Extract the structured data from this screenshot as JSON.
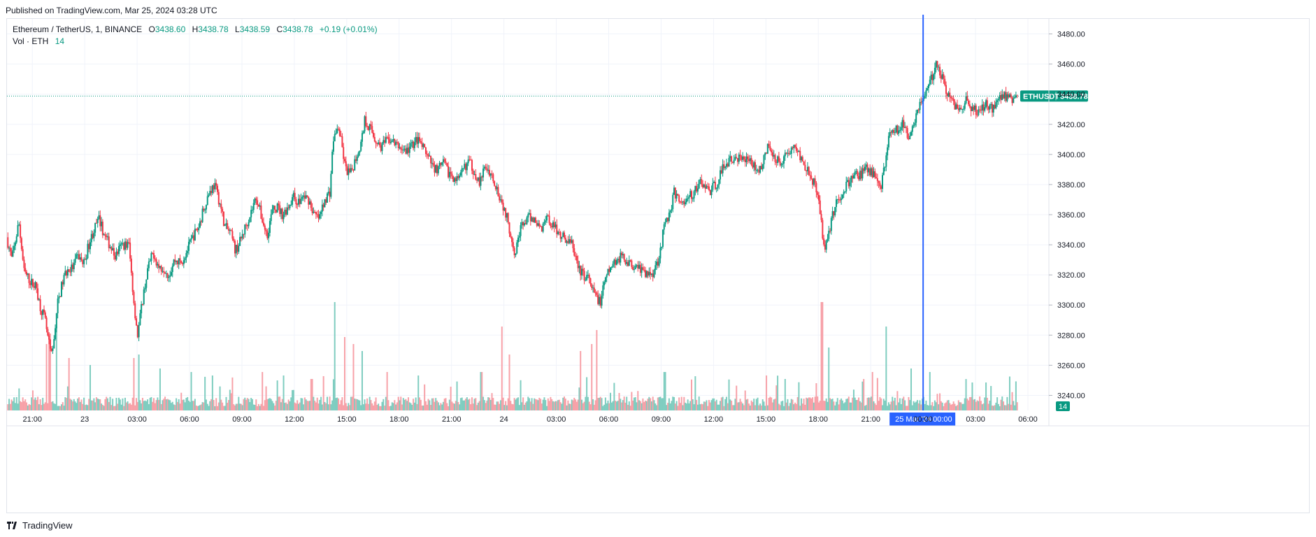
{
  "header": {
    "published": "Published on TradingView.com, Mar 25, 2024 03:28 UTC"
  },
  "legend": {
    "symbol": "Ethereum / TetherUS, 1, BINANCE",
    "o_label": "O",
    "o_value": "3438.60",
    "h_label": "H",
    "h_value": "3438.78",
    "l_label": "L",
    "l_value": "3438.59",
    "c_label": "C",
    "c_value": "3438.78",
    "change": "+0.19 (+0.01%)",
    "vol_label": "Vol · ETH",
    "vol_value": "14"
  },
  "footer": {
    "brand": "TradingView"
  },
  "colors": {
    "up": "#089981",
    "down": "#f23645",
    "up_vol": "#7fcdc0",
    "down_vol": "#f7a1a8",
    "crosshair": "#2962ff",
    "grid": "#f0f3fa"
  },
  "chart_data": {
    "type": "candlestick",
    "symbol": "ETHUSDT",
    "interval": "1",
    "y_ticks": [
      "3240.00",
      "3260.00",
      "3280.00",
      "3300.00",
      "3320.00",
      "3340.00",
      "3360.00",
      "3380.00",
      "3400.00",
      "3420.00",
      "3440.00",
      "3460.00",
      "3480.00"
    ],
    "ylim": [
      3230,
      3490
    ],
    "x_ticks": [
      "21:00",
      "23",
      "03:00",
      "06:00",
      "09:00",
      "12:00",
      "15:00",
      "18:00",
      "21:00",
      "24",
      "03:00",
      "06:00",
      "09:00",
      "12:00",
      "15:00",
      "18:00",
      "21:00",
      "00:00",
      "03:00",
      "06:00"
    ],
    "x_tick_hours": [
      21,
      24,
      27,
      30,
      33,
      36,
      39,
      42,
      45,
      48,
      51,
      54,
      57,
      60,
      63,
      66,
      69,
      72,
      75,
      78
    ],
    "xlim_hours": [
      19.55,
      79.2
    ],
    "last_price": "3438.78",
    "last_price_label": "ETHUSDT",
    "last_volume": "14",
    "crosshair_date_label": "25 Mar '24",
    "crosshair_time_label": "00:00",
    "crosshair_hour": 72.0,
    "price_path": [
      [
        19.6,
        3345
      ],
      [
        19.9,
        3330
      ],
      [
        20.3,
        3355
      ],
      [
        20.6,
        3322
      ],
      [
        21.0,
        3315
      ],
      [
        21.3,
        3312
      ],
      [
        21.5,
        3300
      ],
      [
        21.8,
        3290
      ],
      [
        22.0,
        3275
      ],
      [
        22.2,
        3265
      ],
      [
        22.5,
        3300
      ],
      [
        22.8,
        3315
      ],
      [
        23.0,
        3322
      ],
      [
        23.4,
        3325
      ],
      [
        23.7,
        3333
      ],
      [
        24.0,
        3327
      ],
      [
        24.3,
        3340
      ],
      [
        24.6,
        3350
      ],
      [
        24.9,
        3357
      ],
      [
        25.2,
        3346
      ],
      [
        25.5,
        3340
      ],
      [
        25.8,
        3332
      ],
      [
        26.2,
        3340
      ],
      [
        26.6,
        3340
      ],
      [
        26.9,
        3300
      ],
      [
        27.1,
        3280
      ],
      [
        27.4,
        3305
      ],
      [
        27.7,
        3325
      ],
      [
        28.0,
        3335
      ],
      [
        28.3,
        3325
      ],
      [
        28.6,
        3325
      ],
      [
        28.9,
        3320
      ],
      [
        29.2,
        3330
      ],
      [
        29.6,
        3328
      ],
      [
        30.0,
        3338
      ],
      [
        30.3,
        3346
      ],
      [
        30.6,
        3352
      ],
      [
        30.9,
        3365
      ],
      [
        31.2,
        3375
      ],
      [
        31.5,
        3380
      ],
      [
        31.8,
        3368
      ],
      [
        32.1,
        3352
      ],
      [
        32.4,
        3348
      ],
      [
        32.7,
        3336
      ],
      [
        33.0,
        3343
      ],
      [
        33.3,
        3353
      ],
      [
        33.6,
        3362
      ],
      [
        33.9,
        3372
      ],
      [
        34.2,
        3358
      ],
      [
        34.5,
        3346
      ],
      [
        34.8,
        3362
      ],
      [
        35.1,
        3365
      ],
      [
        35.4,
        3360
      ],
      [
        35.7,
        3365
      ],
      [
        36.0,
        3372
      ],
      [
        36.3,
        3368
      ],
      [
        36.6,
        3372
      ],
      [
        36.9,
        3370
      ],
      [
        37.2,
        3360
      ],
      [
        37.5,
        3357
      ],
      [
        37.8,
        3370
      ],
      [
        38.1,
        3375
      ],
      [
        38.3,
        3410
      ],
      [
        38.6,
        3418
      ],
      [
        38.8,
        3405
      ],
      [
        39.0,
        3390
      ],
      [
        39.3,
        3387
      ],
      [
        39.6,
        3398
      ],
      [
        39.9,
        3408
      ],
      [
        40.1,
        3423
      ],
      [
        40.4,
        3418
      ],
      [
        40.7,
        3410
      ],
      [
        41.0,
        3405
      ],
      [
        41.3,
        3408
      ],
      [
        41.6,
        3410
      ],
      [
        41.9,
        3406
      ],
      [
        42.2,
        3404
      ],
      [
        42.5,
        3402
      ],
      [
        42.8,
        3406
      ],
      [
        43.1,
        3410
      ],
      [
        43.4,
        3405
      ],
      [
        43.7,
        3398
      ],
      [
        44.0,
        3392
      ],
      [
        44.3,
        3390
      ],
      [
        44.6,
        3394
      ],
      [
        44.9,
        3388
      ],
      [
        45.2,
        3385
      ],
      [
        45.5,
        3382
      ],
      [
        45.8,
        3392
      ],
      [
        46.1,
        3395
      ],
      [
        46.4,
        3388
      ],
      [
        46.7,
        3381
      ],
      [
        47.0,
        3392
      ],
      [
        47.3,
        3388
      ],
      [
        47.6,
        3380
      ],
      [
        47.9,
        3370
      ],
      [
        48.2,
        3360
      ],
      [
        48.4,
        3350
      ],
      [
        48.7,
        3335
      ],
      [
        49.0,
        3350
      ],
      [
        49.3,
        3356
      ],
      [
        49.6,
        3358
      ],
      [
        49.9,
        3356
      ],
      [
        50.2,
        3350
      ],
      [
        50.5,
        3360
      ],
      [
        50.8,
        3354
      ],
      [
        51.1,
        3350
      ],
      [
        51.4,
        3346
      ],
      [
        51.7,
        3343
      ],
      [
        52.0,
        3340
      ],
      [
        52.3,
        3325
      ],
      [
        52.6,
        3320
      ],
      [
        52.9,
        3318
      ],
      [
        53.1,
        3310
      ],
      [
        53.4,
        3305
      ],
      [
        53.6,
        3302
      ],
      [
        53.9,
        3318
      ],
      [
        54.2,
        3325
      ],
      [
        54.5,
        3330
      ],
      [
        54.8,
        3332
      ],
      [
        55.1,
        3330
      ],
      [
        55.4,
        3326
      ],
      [
        55.7,
        3328
      ],
      [
        56.0,
        3322
      ],
      [
        56.3,
        3320
      ],
      [
        56.6,
        3322
      ],
      [
        56.9,
        3330
      ],
      [
        57.1,
        3342
      ],
      [
        57.3,
        3355
      ],
      [
        57.6,
        3362
      ],
      [
        57.8,
        3375
      ],
      [
        58.1,
        3370
      ],
      [
        58.4,
        3368
      ],
      [
        58.7,
        3372
      ],
      [
        59.0,
        3375
      ],
      [
        59.3,
        3382
      ],
      [
        59.6,
        3378
      ],
      [
        59.9,
        3376
      ],
      [
        60.2,
        3380
      ],
      [
        60.5,
        3388
      ],
      [
        60.8,
        3395
      ],
      [
        61.1,
        3396
      ],
      [
        61.4,
        3398
      ],
      [
        61.7,
        3395
      ],
      [
        62.0,
        3400
      ],
      [
        62.3,
        3393
      ],
      [
        62.6,
        3390
      ],
      [
        62.9,
        3395
      ],
      [
        63.2,
        3405
      ],
      [
        63.5,
        3400
      ],
      [
        63.8,
        3395
      ],
      [
        64.1,
        3398
      ],
      [
        64.4,
        3402
      ],
      [
        64.7,
        3405
      ],
      [
        65.0,
        3400
      ],
      [
        65.3,
        3393
      ],
      [
        65.6,
        3388
      ],
      [
        65.9,
        3378
      ],
      [
        66.2,
        3360
      ],
      [
        66.4,
        3338
      ],
      [
        66.7,
        3350
      ],
      [
        67.0,
        3365
      ],
      [
        67.3,
        3372
      ],
      [
        67.6,
        3378
      ],
      [
        67.9,
        3382
      ],
      [
        68.2,
        3388
      ],
      [
        68.5,
        3386
      ],
      [
        68.8,
        3390
      ],
      [
        69.1,
        3388
      ],
      [
        69.4,
        3385
      ],
      [
        69.7,
        3380
      ],
      [
        69.9,
        3395
      ],
      [
        70.1,
        3412
      ],
      [
        70.3,
        3418
      ],
      [
        70.6,
        3416
      ],
      [
        70.9,
        3420
      ],
      [
        71.2,
        3412
      ],
      [
        71.5,
        3420
      ],
      [
        71.8,
        3432
      ],
      [
        72.1,
        3438
      ],
      [
        72.4,
        3445
      ],
      [
        72.6,
        3452
      ],
      [
        72.8,
        3463
      ],
      [
        73.0,
        3455
      ],
      [
        73.2,
        3450
      ],
      [
        73.4,
        3442
      ],
      [
        73.6,
        3437
      ],
      [
        73.9,
        3433
      ],
      [
        74.2,
        3430
      ],
      [
        74.5,
        3436
      ],
      [
        74.8,
        3432
      ],
      [
        75.1,
        3428
      ],
      [
        75.4,
        3430
      ],
      [
        75.7,
        3434
      ],
      [
        76.0,
        3430
      ],
      [
        76.3,
        3437
      ],
      [
        76.6,
        3440
      ],
      [
        76.9,
        3438
      ],
      [
        77.2,
        3437
      ],
      [
        77.4,
        3438.78
      ]
    ],
    "volume_spikes": [
      [
        21.8,
        95
      ],
      [
        22.0,
        110
      ],
      [
        22.4,
        120
      ],
      [
        23.1,
        75
      ],
      [
        24.3,
        65
      ],
      [
        26.8,
        75
      ],
      [
        27.1,
        80
      ],
      [
        28.3,
        60
      ],
      [
        30.1,
        55
      ],
      [
        31.3,
        50
      ],
      [
        34.2,
        55
      ],
      [
        35.4,
        50
      ],
      [
        37.0,
        45
      ],
      [
        38.3,
        155
      ],
      [
        38.9,
        105
      ],
      [
        39.4,
        95
      ],
      [
        39.9,
        85
      ],
      [
        41.3,
        55
      ],
      [
        43.1,
        50
      ],
      [
        46.7,
        55
      ],
      [
        47.9,
        120
      ],
      [
        48.3,
        80
      ],
      [
        52.4,
        85
      ],
      [
        53.0,
        95
      ],
      [
        53.3,
        115
      ],
      [
        57.2,
        55
      ],
      [
        63.0,
        50
      ],
      [
        64.1,
        45
      ],
      [
        66.2,
        155
      ],
      [
        66.6,
        90
      ],
      [
        68.6,
        45
      ],
      [
        69.1,
        55
      ],
      [
        69.9,
        120
      ],
      [
        71.3,
        60
      ],
      [
        72.4,
        55
      ],
      [
        74.8,
        40
      ],
      [
        75.6,
        40
      ]
    ]
  }
}
